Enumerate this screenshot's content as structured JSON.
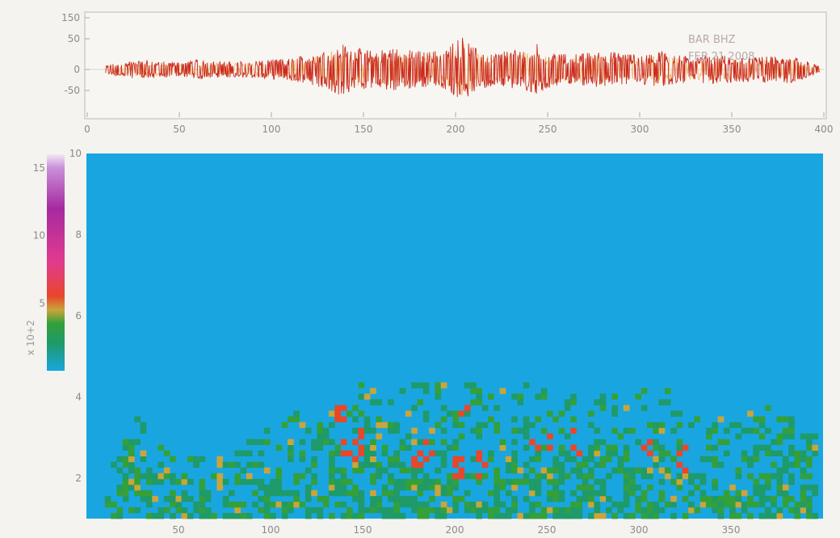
{
  "chart_data": [
    {
      "type": "line",
      "panel": "seismogram",
      "x_range": [
        0,
        400
      ],
      "y_range": [
        -60,
        160
      ],
      "xticks": [
        "0",
        "50",
        "100",
        "150",
        "200",
        "250",
        "300",
        "350",
        "400"
      ],
      "yticks": [
        "150",
        "50",
        "0",
        "-50"
      ],
      "station_label": "BAR  BHZ",
      "station_label_line2": "FEB 21 2008",
      "series": [
        {
          "color": "#cc2a1e",
          "x_start": 10,
          "x_end": 398,
          "baseline": 0,
          "envelope": [
            [
              10,
              8
            ],
            [
              20,
              14
            ],
            [
              30,
              18
            ],
            [
              40,
              15
            ],
            [
              50,
              14
            ],
            [
              60,
              18
            ],
            [
              70,
              16
            ],
            [
              80,
              14
            ],
            [
              90,
              16
            ],
            [
              100,
              18
            ],
            [
              110,
              20
            ],
            [
              120,
              28
            ],
            [
              130,
              38
            ],
            [
              138,
              48
            ],
            [
              145,
              40
            ],
            [
              155,
              34
            ],
            [
              165,
              40
            ],
            [
              175,
              36
            ],
            [
              185,
              32
            ],
            [
              195,
              38
            ],
            [
              200,
              55
            ],
            [
              205,
              62
            ],
            [
              210,
              40
            ],
            [
              220,
              30
            ],
            [
              230,
              34
            ],
            [
              240,
              40
            ],
            [
              245,
              48
            ],
            [
              250,
              35
            ],
            [
              260,
              28
            ],
            [
              270,
              30
            ],
            [
              280,
              34
            ],
            [
              292,
              30
            ],
            [
              300,
              26
            ],
            [
              308,
              30
            ],
            [
              312,
              36
            ],
            [
              320,
              26
            ],
            [
              330,
              24
            ],
            [
              340,
              28
            ],
            [
              350,
              24
            ],
            [
              360,
              22
            ],
            [
              370,
              24
            ],
            [
              380,
              26
            ],
            [
              390,
              16
            ],
            [
              398,
              6
            ]
          ]
        }
      ]
    },
    {
      "type": "heatmap",
      "panel": "spectrogram",
      "x_range": [
        0,
        400
      ],
      "y_range": [
        1,
        10
      ],
      "xticks": [
        "50",
        "100",
        "150",
        "200",
        "250",
        "300",
        "350"
      ],
      "yticks": [
        "10",
        "8",
        "6",
        "4",
        "2"
      ],
      "background_color": "#19a6e0",
      "colorbar": {
        "ticks": [
          "15",
          "10",
          "5"
        ],
        "range": [
          0,
          16
        ],
        "label": "x 10+2",
        "stops": [
          {
            "value": 0,
            "color": "#19a6e0"
          },
          {
            "value": 2,
            "color": "#1f9a6a"
          },
          {
            "value": 3.5,
            "color": "#34a03a"
          },
          {
            "value": 4.5,
            "color": "#c9a53a"
          },
          {
            "value": 5.5,
            "color": "#e8472a"
          },
          {
            "value": 8,
            "color": "#e23b8e"
          },
          {
            "value": 12,
            "color": "#a62aa0"
          },
          {
            "value": 15,
            "color": "#c991d9"
          },
          {
            "value": 16,
            "color": "#f1e7f5"
          }
        ]
      },
      "activity_envelope": [
        [
          10,
          2.6
        ],
        [
          25,
          3.5
        ],
        [
          40,
          3.0
        ],
        [
          60,
          2.7
        ],
        [
          80,
          2.8
        ],
        [
          100,
          3.2
        ],
        [
          115,
          3.6
        ],
        [
          130,
          4.1
        ],
        [
          140,
          4.4
        ],
        [
          150,
          4.5
        ],
        [
          160,
          4.3
        ],
        [
          170,
          4.1
        ],
        [
          180,
          4.3
        ],
        [
          200,
          4.5
        ],
        [
          220,
          4.2
        ],
        [
          240,
          4.4
        ],
        [
          260,
          4.0
        ],
        [
          280,
          4.0
        ],
        [
          300,
          4.2
        ],
        [
          320,
          4.1
        ],
        [
          340,
          3.8
        ],
        [
          360,
          3.8
        ],
        [
          380,
          3.7
        ],
        [
          395,
          3.0
        ]
      ],
      "hotspots": [
        [
          136,
          3.6,
          6.5
        ],
        [
          138,
          2.8,
          7.0
        ],
        [
          142,
          2.5,
          6.0
        ],
        [
          147,
          2.8,
          6.0
        ],
        [
          178,
          2.5,
          6.0
        ],
        [
          183,
          2.6,
          6.5
        ],
        [
          186,
          3.6,
          7.0
        ],
        [
          201,
          2.2,
          7.0
        ],
        [
          203,
          3.8,
          6.5
        ],
        [
          212,
          2.3,
          6.0
        ],
        [
          243,
          2.9,
          6.0
        ],
        [
          251,
          2.9,
          6.5
        ],
        [
          253,
          3.8,
          5.5
        ],
        [
          264,
          2.8,
          5.5
        ],
        [
          304,
          2.8,
          6.5
        ],
        [
          323,
          2.4,
          5.5
        ]
      ]
    }
  ]
}
